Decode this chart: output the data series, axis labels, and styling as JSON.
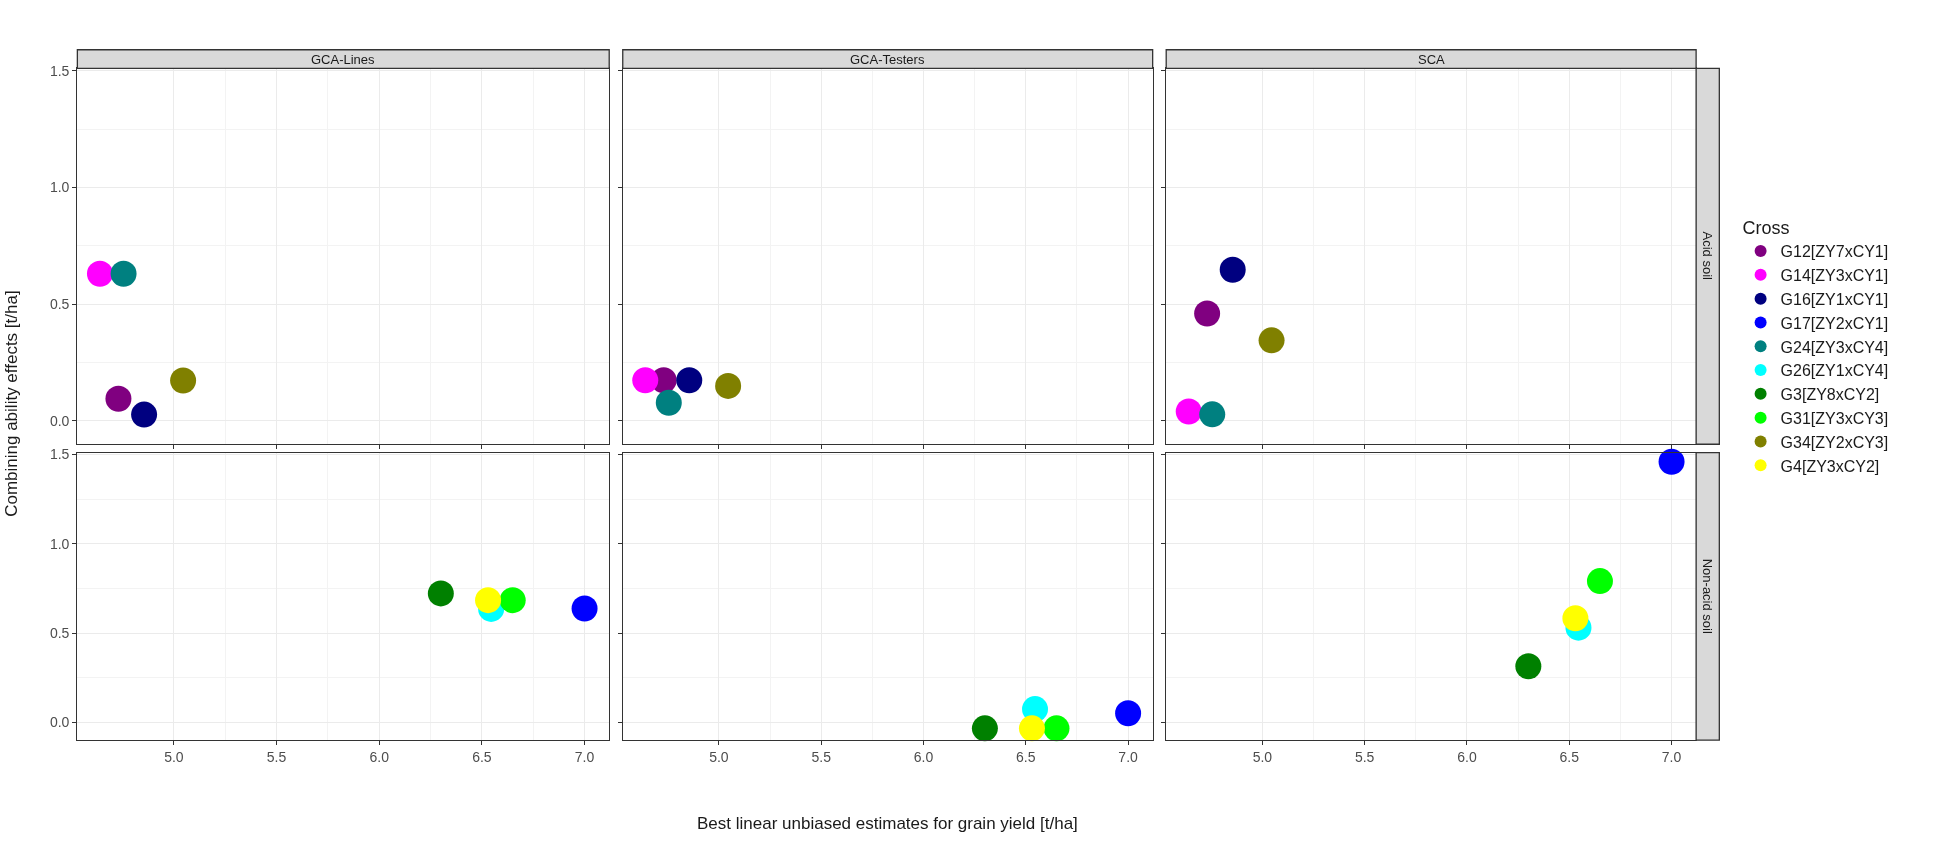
{
  "chart_data": [
    {
      "type": "scatter",
      "title": "GCA-Lines",
      "ylabel": "Combining ability effects [t/ha]",
      "legend": "right",
      "legend_title": "Cross",
      "marker": "circle",
      "grid": true,
      "tick_labels": "y",
      "xlim": [
        4.53,
        7.12
      ],
      "ylim": [
        -0.1,
        1.51
      ],
      "xticks": [
        {
          "value": 5,
          "label": null
        },
        {
          "value": 5.5,
          "label": null
        },
        {
          "value": 6,
          "label": null
        },
        {
          "value": 6.5,
          "label": null
        },
        {
          "value": 7,
          "label": null
        }
      ],
      "yticks": [
        {
          "value": 0,
          "label": "0.0"
        },
        {
          "value": 0.5,
          "label": "0.5"
        },
        {
          "value": 1,
          "label": "1.0"
        },
        {
          "value": 1.5,
          "label": "1.5"
        }
      ],
      "series": [
        {
          "name": "G12[ZY7xCY1]",
          "color": "#800080",
          "x": [
            4.73
          ],
          "values": [
            0.095
          ]
        },
        {
          "name": "G14[ZY3xCY1]",
          "color": "#ff00ff",
          "x": [
            4.64
          ],
          "values": [
            0.63
          ]
        },
        {
          "name": "G16[ZY1xCY1]",
          "color": "#000080",
          "x": [
            4.855
          ],
          "values": [
            0.027
          ]
        },
        {
          "name": "G24[ZY3xCY4]",
          "color": "#008080",
          "x": [
            4.755
          ],
          "values": [
            0.63
          ]
        },
        {
          "name": "G34[ZY2xCY3]",
          "color": "#808000",
          "x": [
            5.045
          ],
          "values": [
            0.173
          ]
        }
      ]
    },
    {
      "type": "scatter",
      "title": "GCA-Testers",
      "marker": "circle",
      "grid": true,
      "tick_labels": false,
      "xlim": [
        4.53,
        7.12
      ],
      "ylim": [
        -0.1,
        1.51
      ],
      "xticks": [
        {
          "value": 5,
          "label": null
        },
        {
          "value": 5.5,
          "label": null
        },
        {
          "value": 6,
          "label": null
        },
        {
          "value": 6.5,
          "label": null
        },
        {
          "value": 7,
          "label": null
        }
      ],
      "yticks": [
        {
          "value": 0,
          "label": null
        },
        {
          "value": 0.5,
          "label": null
        },
        {
          "value": 1,
          "label": null
        },
        {
          "value": 1.5,
          "label": null
        }
      ],
      "series": [
        {
          "color": "#800080",
          "x": [
            4.73
          ],
          "values": [
            0.174
          ]
        },
        {
          "color": "#ff00ff",
          "x": [
            4.64
          ],
          "values": [
            0.174
          ]
        },
        {
          "color": "#000080",
          "x": [
            4.855
          ],
          "values": [
            0.174
          ]
        },
        {
          "color": "#008080",
          "x": [
            4.755
          ],
          "values": [
            0.078
          ]
        },
        {
          "color": "#808000",
          "x": [
            5.045
          ],
          "values": [
            0.15
          ]
        }
      ]
    },
    {
      "type": "scatter",
      "title": "SCA",
      "annotations": [
        "Acid soil"
      ],
      "marker": "circle",
      "grid": true,
      "tick_labels": false,
      "xlim": [
        4.53,
        7.12
      ],
      "ylim": [
        -0.1,
        1.51
      ],
      "xticks": [
        {
          "value": 5,
          "label": null
        },
        {
          "value": 5.5,
          "label": null
        },
        {
          "value": 6,
          "label": null
        },
        {
          "value": 6.5,
          "label": null
        },
        {
          "value": 7,
          "label": null
        }
      ],
      "yticks": [
        {
          "value": 0,
          "label": null
        },
        {
          "value": 0.5,
          "label": null
        },
        {
          "value": 1,
          "label": null
        },
        {
          "value": 1.5,
          "label": null
        }
      ],
      "series": [
        {
          "color": "#800080",
          "x": [
            4.73
          ],
          "values": [
            0.46
          ]
        },
        {
          "color": "#ff00ff",
          "x": [
            4.64
          ],
          "values": [
            0.04
          ]
        },
        {
          "color": "#000080",
          "x": [
            4.855
          ],
          "values": [
            0.647
          ]
        },
        {
          "color": "#008080",
          "x": [
            4.755
          ],
          "values": [
            0.028
          ]
        },
        {
          "color": "#808000",
          "x": [
            5.045
          ],
          "values": [
            0.345
          ]
        }
      ]
    },
    {
      "type": "scatter",
      "legend": "right",
      "marker": "circle",
      "grid": true,
      "xlim": [
        4.53,
        7.12
      ],
      "ylim": [
        -0.1,
        1.51
      ],
      "xticks": [
        {
          "value": 5,
          "label": "5.0"
        },
        {
          "value": 5.5,
          "label": "5.5"
        },
        {
          "value": 6,
          "label": "6.0"
        },
        {
          "value": 6.5,
          "label": "6.5"
        },
        {
          "value": 7,
          "label": "7.0"
        }
      ],
      "yticks": [
        {
          "value": 0,
          "label": "0.0"
        },
        {
          "value": 0.5,
          "label": "0.5"
        },
        {
          "value": 1,
          "label": "1.0"
        },
        {
          "value": 1.5,
          "label": "1.5"
        }
      ],
      "series": [
        {
          "name": "G17[ZY2xCY1]",
          "color": "#0000ff",
          "x": [
            7.0
          ],
          "values": [
            0.637
          ]
        },
        {
          "name": "G26[ZY1xCY4]",
          "color": "#00ffff",
          "x": [
            6.545
          ],
          "values": [
            0.635
          ]
        },
        {
          "name": "G3[ZY8xCY2]",
          "color": "#008000",
          "x": [
            6.3
          ],
          "values": [
            0.722
          ]
        },
        {
          "name": "G31[ZY3xCY3]",
          "color": "#00ff00",
          "x": [
            6.65
          ],
          "values": [
            0.684
          ]
        },
        {
          "name": "G4[ZY3xCY2]",
          "color": "#ffff00",
          "x": [
            6.53
          ],
          "values": [
            0.684
          ]
        }
      ]
    },
    {
      "type": "scatter",
      "xlabel": "Best linear unbiased estimates for grain yield [t/ha]",
      "marker": "circle",
      "grid": true,
      "tick_labels": "x",
      "xlim": [
        4.53,
        7.12
      ],
      "ylim": [
        -0.1,
        1.51
      ],
      "xticks": [
        {
          "value": 5,
          "label": "5.0"
        },
        {
          "value": 5.5,
          "label": "5.5"
        },
        {
          "value": 6,
          "label": "6.0"
        },
        {
          "value": 6.5,
          "label": "6.5"
        },
        {
          "value": 7,
          "label": "7.0"
        }
      ],
      "yticks": [
        {
          "value": 0,
          "label": null
        },
        {
          "value": 0.5,
          "label": null
        },
        {
          "value": 1,
          "label": null
        },
        {
          "value": 1.5,
          "label": null
        }
      ],
      "series": [
        {
          "color": "#0000ff",
          "x": [
            7.0
          ],
          "values": [
            0.051
          ]
        },
        {
          "color": "#00ffff",
          "x": [
            6.545
          ],
          "values": [
            0.074
          ]
        },
        {
          "color": "#008000",
          "x": [
            6.3
          ],
          "values": [
            -0.034
          ]
        },
        {
          "color": "#00ff00",
          "x": [
            6.65
          ],
          "values": [
            -0.034
          ]
        },
        {
          "color": "#ffff00",
          "x": [
            6.53
          ],
          "values": [
            -0.034
          ]
        }
      ]
    },
    {
      "type": "scatter",
      "annotations": [
        "Non-acid soil"
      ],
      "marker": "circle",
      "grid": true,
      "tick_labels": "x",
      "xlim": [
        4.53,
        7.12
      ],
      "ylim": [
        -0.1,
        1.51
      ],
      "xticks": [
        {
          "value": 5,
          "label": "5.0"
        },
        {
          "value": 5.5,
          "label": "5.5"
        },
        {
          "value": 6,
          "label": "6.0"
        },
        {
          "value": 6.5,
          "label": "6.5"
        },
        {
          "value": 7,
          "label": "7.0"
        }
      ],
      "yticks": [
        {
          "value": 0,
          "label": null
        },
        {
          "value": 0.5,
          "label": null
        },
        {
          "value": 1,
          "label": null
        },
        {
          "value": 1.5,
          "label": null
        }
      ],
      "series": [
        {
          "color": "#0000ff",
          "x": [
            7.0
          ],
          "values": [
            1.459
          ]
        },
        {
          "color": "#00ffff",
          "x": [
            6.545
          ],
          "values": [
            0.53
          ]
        },
        {
          "color": "#008000",
          "x": [
            6.3
          ],
          "values": [
            0.314
          ]
        },
        {
          "color": "#00ff00",
          "x": [
            6.65
          ],
          "values": [
            0.791
          ]
        },
        {
          "color": "#ffff00",
          "x": [
            6.53
          ],
          "values": [
            0.583
          ]
        }
      ]
    }
  ]
}
